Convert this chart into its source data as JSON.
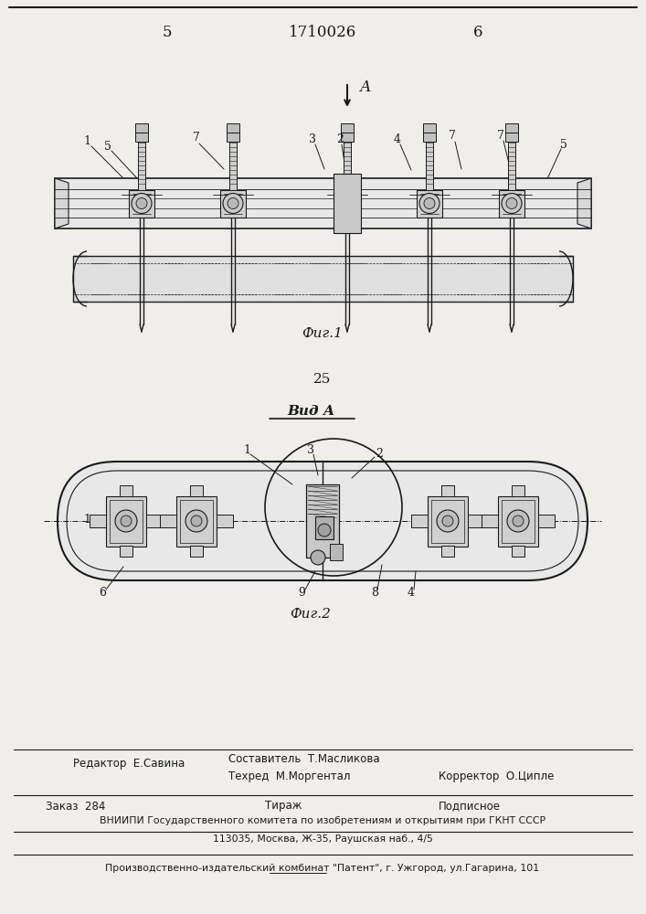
{
  "page_number_left": "5",
  "page_number_right": "6",
  "patent_number": "1710026",
  "fig1_label": "Фиг.1",
  "fig2_label": "Фиг.2",
  "view_label": "Вид А",
  "arrow_label": "А",
  "number_25": "25",
  "editor_line": "Редактор  Е.Савина",
  "composer_line1": "Составитель  Т.Масликова",
  "techred_line": "Техред  М.Моргентал",
  "corrector_line": "Корректор  О.Ципле",
  "order_line": "Заказ  284",
  "tirazh_line": "Тираж",
  "podpisnoe_line": "Подписное",
  "vniiipi_line": "ВНИИПИ Государственного комитета по изобретениям и открытиям при ГКНТ СССР",
  "address_line": "113035, Москва, Ж-35, Раушская наб., 4/5",
  "publisher_line": "Производственно-издательский комбинат \"Патент\", г. Ужгород, ул.Гагарина, 101",
  "bg_color": "#f0eeea",
  "line_color": "#1a1a1a",
  "text_color": "#1a1a1a"
}
